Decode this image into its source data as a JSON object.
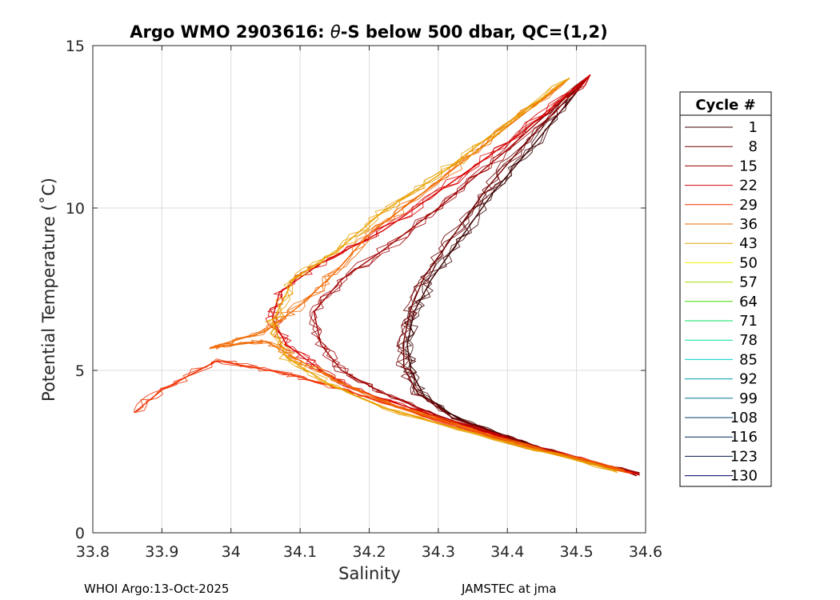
{
  "chart_data": {
    "type": "line",
    "title_prefix": "Argo WMO 2903616: ",
    "title_theta": "θ",
    "title_suffix": "-S below 500 dbar,  QC=(1,2)",
    "xlabel": "Salinity",
    "ylabel": "Potential Temperature (˚C)",
    "xlim": [
      33.8,
      34.6
    ],
    "ylim": [
      0,
      15
    ],
    "xticks": [
      "33.8",
      "33.9",
      "34",
      "34.1",
      "34.2",
      "34.3",
      "34.4",
      "34.5",
      "34.6"
    ],
    "yticks": [
      "0",
      "5",
      "10",
      "15"
    ],
    "grid": true,
    "legend": {
      "title": "Cycle #",
      "position": "right-outside",
      "entries": [
        {
          "label": "1",
          "color": "#3b0000"
        },
        {
          "label": "8",
          "color": "#6e0000"
        },
        {
          "label": "15",
          "color": "#a00000"
        },
        {
          "label": "22",
          "color": "#d80000"
        },
        {
          "label": "29",
          "color": "#f03000"
        },
        {
          "label": "36",
          "color": "#f06800"
        },
        {
          "label": "43",
          "color": "#e8a000"
        },
        {
          "label": "50",
          "color": "#f0f000"
        },
        {
          "label": "57",
          "color": "#a8e000"
        },
        {
          "label": "64",
          "color": "#40e000"
        },
        {
          "label": "71",
          "color": "#00e060"
        },
        {
          "label": "78",
          "color": "#00e0a0"
        },
        {
          "label": "85",
          "color": "#00d0d0"
        },
        {
          "label": "92",
          "color": "#00a0b0"
        },
        {
          "label": "99",
          "color": "#007890"
        },
        {
          "label": "108",
          "color": "#004070"
        },
        {
          "label": "116",
          "color": "#002858"
        },
        {
          "label": "123",
          "color": "#001848"
        },
        {
          "label": "130",
          "color": "#000068"
        }
      ]
    },
    "series": [
      {
        "name": "cycle 1",
        "color": "#3b0000",
        "points": [
          [
            34.59,
            1.8
          ],
          [
            34.45,
            2.6
          ],
          [
            34.33,
            3.5
          ],
          [
            34.28,
            4.2
          ],
          [
            34.26,
            5.0
          ],
          [
            34.255,
            5.8
          ],
          [
            34.265,
            6.8
          ],
          [
            34.29,
            7.8
          ],
          [
            34.33,
            9.0
          ],
          [
            34.38,
            10.5
          ],
          [
            34.44,
            12.0
          ],
          [
            34.52,
            14.1
          ]
        ]
      },
      {
        "name": "cycle 8",
        "color": "#6e0000",
        "points": [
          [
            34.59,
            1.8
          ],
          [
            34.44,
            2.65
          ],
          [
            34.32,
            3.55
          ],
          [
            34.27,
            4.3
          ],
          [
            34.25,
            5.1
          ],
          [
            34.25,
            5.9
          ],
          [
            34.26,
            6.9
          ],
          [
            34.28,
            7.9
          ],
          [
            34.32,
            9.1
          ],
          [
            34.37,
            10.6
          ],
          [
            34.43,
            12.1
          ],
          [
            34.52,
            14.1
          ]
        ]
      },
      {
        "name": "cycle 15",
        "color": "#a00000",
        "points": [
          [
            34.59,
            1.8
          ],
          [
            34.43,
            2.7
          ],
          [
            34.3,
            3.6
          ],
          [
            34.22,
            4.3
          ],
          [
            34.16,
            5.0
          ],
          [
            34.13,
            5.8
          ],
          [
            34.12,
            6.8
          ],
          [
            34.16,
            7.8
          ],
          [
            34.22,
            8.7
          ],
          [
            34.3,
            10.0
          ],
          [
            34.4,
            11.8
          ],
          [
            34.52,
            14.1
          ]
        ]
      },
      {
        "name": "cycle 22",
        "color": "#d80000",
        "points": [
          [
            34.59,
            1.8
          ],
          [
            34.42,
            2.75
          ],
          [
            34.28,
            3.7
          ],
          [
            34.18,
            4.4
          ],
          [
            34.13,
            5.0
          ],
          [
            34.08,
            5.8
          ],
          [
            34.06,
            6.6
          ],
          [
            34.07,
            7.4
          ],
          [
            34.13,
            8.3
          ],
          [
            34.22,
            9.3
          ],
          [
            34.32,
            10.8
          ],
          [
            34.42,
            12.3
          ],
          [
            34.52,
            14.1
          ]
        ]
      },
      {
        "name": "cycle 29",
        "color": "#f03000",
        "points": [
          [
            34.58,
            1.85
          ],
          [
            34.4,
            2.8
          ],
          [
            34.25,
            3.8
          ],
          [
            34.15,
            4.5
          ],
          [
            34.08,
            4.9
          ],
          [
            33.98,
            5.3
          ],
          [
            33.9,
            4.4
          ],
          [
            33.86,
            3.7
          ]
        ]
      },
      {
        "name": "cycle 36",
        "color": "#f06800",
        "points": [
          [
            34.57,
            1.9
          ],
          [
            34.4,
            2.85
          ],
          [
            34.24,
            3.9
          ],
          [
            34.15,
            4.7
          ],
          [
            34.1,
            5.3
          ],
          [
            34.05,
            5.9
          ],
          [
            33.97,
            5.7
          ],
          [
            34.05,
            6.2
          ],
          [
            34.1,
            7.0
          ],
          [
            34.15,
            8.0
          ],
          [
            34.2,
            9.2
          ],
          [
            34.28,
            10.5
          ],
          [
            34.37,
            12.0
          ],
          [
            34.49,
            14.0
          ]
        ]
      },
      {
        "name": "cycle 43",
        "color": "#e8a000",
        "points": [
          [
            34.56,
            1.9
          ],
          [
            34.38,
            2.9
          ],
          [
            34.22,
            3.85
          ],
          [
            34.14,
            4.6
          ],
          [
            34.08,
            5.4
          ],
          [
            34.06,
            6.5
          ],
          [
            34.09,
            7.8
          ],
          [
            34.16,
            8.8
          ],
          [
            34.22,
            9.9
          ],
          [
            34.3,
            11.0
          ],
          [
            34.38,
            12.3
          ],
          [
            34.49,
            14.0
          ]
        ]
      }
    ],
    "texture_seed": 2903616
  },
  "footer": {
    "left": "WHOI Argo:13-Oct-2025",
    "right": "JAMSTEC at jma"
  }
}
